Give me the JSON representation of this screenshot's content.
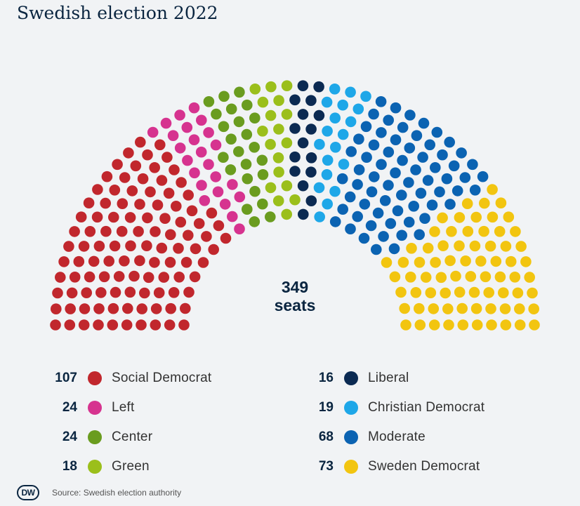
{
  "title": "Swedish election 2022",
  "total": {
    "number": "349",
    "unit": "seats"
  },
  "source": "Source: Swedish election authority",
  "logo": "DW",
  "chart_data": {
    "type": "parliament",
    "title": "Swedish election 2022",
    "total_seats": 349,
    "parties": [
      {
        "name": "Social Democrat",
        "seats": 107,
        "color": "#c1272d"
      },
      {
        "name": "Left",
        "seats": 24,
        "color": "#d6338f"
      },
      {
        "name": "Center",
        "seats": 24,
        "color": "#6a9c1f"
      },
      {
        "name": "Green",
        "seats": 18,
        "color": "#9bbf1b"
      },
      {
        "name": "Liberal",
        "seats": 16,
        "color": "#0b2a52"
      },
      {
        "name": "Christian Democrat",
        "seats": 19,
        "color": "#1ea7e8"
      },
      {
        "name": "Moderate",
        "seats": 68,
        "color": "#0b63b2"
      },
      {
        "name": "Sweden Democrat",
        "seats": 73,
        "color": "#f2c510"
      }
    ]
  },
  "legend": {
    "col0": [
      {
        "seats": "107",
        "name": "Social Democrat",
        "color": "#c1272d"
      },
      {
        "seats": "24",
        "name": "Left",
        "color": "#d6338f"
      },
      {
        "seats": "24",
        "name": "Center",
        "color": "#6a9c1f"
      },
      {
        "seats": "18",
        "name": "Green",
        "color": "#9bbf1b"
      }
    ],
    "col1": [
      {
        "seats": "16",
        "name": "Liberal",
        "color": "#0b2a52"
      },
      {
        "seats": "19",
        "name": "Christian Democrat",
        "color": "#1ea7e8"
      },
      {
        "seats": "68",
        "name": "Moderate",
        "color": "#0b63b2"
      },
      {
        "seats": "73",
        "name": "Sweden Democrat",
        "color": "#f2c510"
      }
    ]
  }
}
